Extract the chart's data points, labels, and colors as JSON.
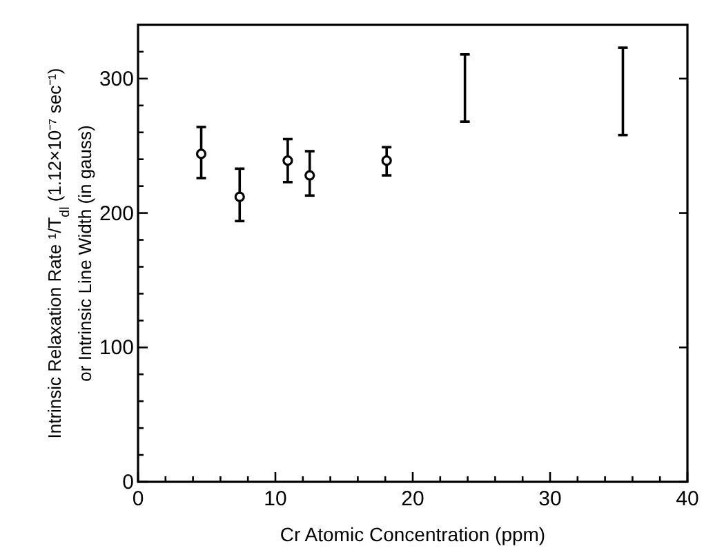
{
  "chart_data": {
    "type": "scatter",
    "xlabel": "Cr Atomic Concentration (ppm)",
    "ylabel": "Intrinsic Relaxation Rate ¹/T$_{dl}$ (1.12×10⁻⁷ sec⁻¹)\nor Intrinsic Line Width (in gauss)",
    "xlim": [
      0,
      40
    ],
    "ylim": [
      0,
      340
    ],
    "xticks": [
      0,
      {
        "value": 2,
        "label": null
      },
      {
        "value": 4,
        "label": null
      },
      {
        "value": 6,
        "label": null
      },
      {
        "value": 8,
        "label": null
      },
      10,
      {
        "value": 12,
        "label": null
      },
      {
        "value": 14,
        "label": null
      },
      {
        "value": 16,
        "label": null
      },
      {
        "value": 18,
        "label": null
      },
      20,
      {
        "value": 22,
        "label": null
      },
      {
        "value": 24,
        "label": null
      },
      {
        "value": 26,
        "label": null
      },
      {
        "value": 28,
        "label": null
      },
      30,
      {
        "value": 32,
        "label": null
      },
      {
        "value": 34,
        "label": null
      },
      {
        "value": 36,
        "label": null
      },
      {
        "value": 38,
        "label": null
      },
      40
    ],
    "yticks": [
      0,
      {
        "value": 20,
        "label": null
      },
      {
        "value": 40,
        "label": null
      },
      {
        "value": 60,
        "label": null
      },
      {
        "value": 80,
        "label": null
      },
      100,
      {
        "value": 120,
        "label": null
      },
      {
        "value": 140,
        "label": null
      },
      {
        "value": 160,
        "label": null
      },
      {
        "value": 180,
        "label": null
      },
      200,
      {
        "value": 220,
        "label": null
      },
      {
        "value": 240,
        "label": null
      },
      {
        "value": 260,
        "label": null
      },
      {
        "value": 280,
        "label": null
      },
      300,
      {
        "value": 320,
        "label": null
      }
    ],
    "grid": false,
    "legend": false,
    "series": [
      {
        "color": "#000000",
        "marker": "circle",
        "x": [
          4.6,
          7.4,
          10.9,
          12.5,
          18.1
        ],
        "values": [
          244,
          212,
          239,
          228,
          239
        ],
        "errors": [
          [
            226,
            264
          ],
          [
            194,
            233
          ],
          [
            223,
            255
          ],
          [
            213,
            246
          ],
          [
            228,
            249
          ]
        ]
      },
      {
        "type": "line",
        "color": "#000000",
        "marker": "none",
        "x": [
          23.8,
          23.8
        ],
        "values": [
          268,
          318
        ]
      },
      {
        "type": "line",
        "color": "#000000",
        "marker": "none",
        "x": [
          35.3,
          35.3
        ],
        "values": [
          258,
          323
        ]
      }
    ]
  }
}
